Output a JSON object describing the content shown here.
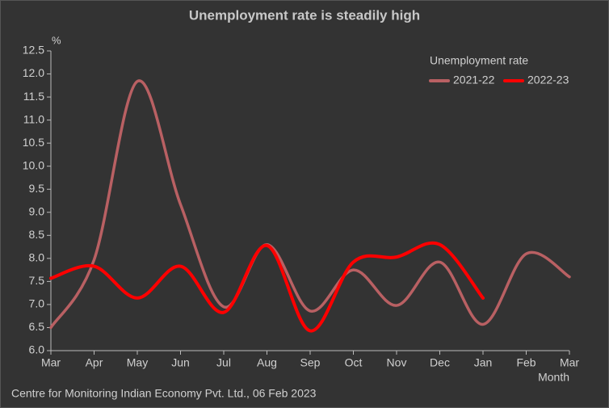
{
  "chart_data": {
    "type": "line",
    "title": "Unemployment rate is steadily high",
    "y_label": "%",
    "x_label": "Month",
    "source": "Centre for Monitoring Indian Economy Pvt. Ltd., 06 Feb 2023",
    "legend_title": "Unemployment rate",
    "legend_position": "upper right",
    "categories": [
      "Mar",
      "Apr",
      "May",
      "Jun",
      "Jul",
      "Aug",
      "Sep",
      "Oct",
      "Nov",
      "Dec",
      "Jan",
      "Feb",
      "Mar"
    ],
    "series": [
      {
        "name": "2021-22",
        "color": "#b96063",
        "values": [
          6.5,
          7.97,
          11.84,
          9.17,
          6.95,
          8.3,
          6.86,
          7.75,
          6.98,
          7.92,
          6.57,
          8.1,
          7.6
        ]
      },
      {
        "name": "2022-23",
        "color": "#ff0000",
        "values": [
          7.57,
          7.83,
          7.14,
          7.83,
          6.83,
          8.28,
          6.43,
          7.92,
          8.03,
          8.3,
          7.14,
          null,
          null
        ]
      }
    ],
    "ylim": [
      6,
      12.5
    ],
    "yticks": [
      {
        "value": 6,
        "label": "6.0"
      },
      6.5,
      {
        "value": 7,
        "label": "7.0"
      },
      7.5,
      {
        "value": 8,
        "label": "8.0"
      },
      8.5,
      {
        "value": 9,
        "label": "9.0"
      },
      9.5,
      {
        "value": 10,
        "label": "10.0"
      },
      10.5,
      {
        "value": 11,
        "label": "11.0"
      },
      11.5,
      {
        "value": 12,
        "label": "12.0"
      },
      12.5
    ]
  }
}
